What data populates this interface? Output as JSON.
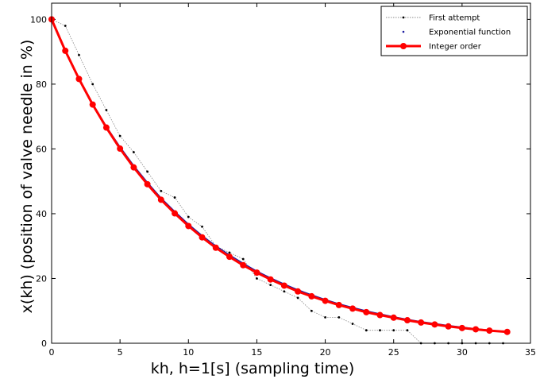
{
  "chart_data": {
    "type": "line",
    "title": "",
    "xlabel": "kh, h=1[s] (sampling time)",
    "ylabel": "x(kh) (position of valve needle in %)",
    "xlim": [
      0,
      35
    ],
    "ylim": [
      0,
      105
    ],
    "x_ticks": [
      0,
      5,
      10,
      15,
      20,
      25,
      30,
      35
    ],
    "y_ticks": [
      0,
      20,
      40,
      60,
      80,
      100
    ],
    "grid": false,
    "legend_position": "top-right",
    "series": [
      {
        "name": "First attempt",
        "style": "dotted",
        "color": "#000000",
        "x": [
          0,
          1,
          2,
          3,
          4,
          5,
          6,
          7,
          8,
          9,
          10,
          11,
          12,
          13,
          14,
          15,
          16,
          17,
          18,
          19,
          20,
          21,
          22,
          23,
          24,
          25,
          26,
          27,
          28,
          29,
          30,
          31,
          32,
          33
        ],
        "y": [
          100,
          98,
          89,
          80,
          72,
          64,
          59,
          53,
          47,
          45,
          39,
          36,
          30,
          28,
          26,
          20,
          18,
          16,
          14,
          10,
          8,
          8,
          6,
          4,
          4,
          4,
          4,
          0,
          0,
          0,
          0,
          0,
          0,
          0
        ]
      },
      {
        "name": "Exponential function",
        "style": "dots",
        "color": "#1a1aa0",
        "x": [
          0,
          1,
          2,
          3,
          4,
          5,
          6,
          7,
          8,
          9,
          10,
          11,
          12,
          13,
          14,
          15,
          16,
          17,
          18,
          19,
          20,
          21,
          22,
          23,
          24,
          25,
          26,
          27,
          28,
          29,
          30,
          31,
          32,
          33
        ],
        "y": [
          100,
          90.5,
          81.9,
          74.1,
          67.0,
          60.7,
          54.9,
          49.7,
          44.9,
          40.7,
          36.8,
          33.3,
          30.1,
          27.3,
          24.7,
          22.3,
          20.2,
          18.3,
          16.5,
          15.0,
          13.5,
          12.2,
          11.1,
          10.0,
          9.1,
          8.2,
          7.4,
          6.7,
          6.1,
          5.5,
          5.0,
          4.5,
          4.1,
          3.7
        ]
      },
      {
        "name": "Integer order",
        "style": "solid-marker",
        "color": "#ff0000",
        "x": [
          0,
          1,
          2,
          3,
          4,
          5,
          6,
          7,
          8,
          9,
          10,
          11,
          12,
          13,
          14,
          15,
          16,
          17,
          18,
          19,
          20,
          21,
          22,
          23,
          24,
          25,
          26,
          27,
          28,
          29,
          30,
          31,
          32,
          33.3
        ],
        "y": [
          100,
          90.3,
          81.6,
          73.7,
          66.6,
          60.1,
          54.3,
          49.1,
          44.3,
          40.1,
          36.2,
          32.7,
          29.5,
          26.7,
          24.1,
          21.8,
          19.7,
          17.8,
          16.0,
          14.5,
          13.1,
          11.8,
          10.7,
          9.6,
          8.7,
          7.9,
          7.1,
          6.4,
          5.8,
          5.2,
          4.7,
          4.3,
          3.9,
          3.5
        ]
      }
    ]
  }
}
